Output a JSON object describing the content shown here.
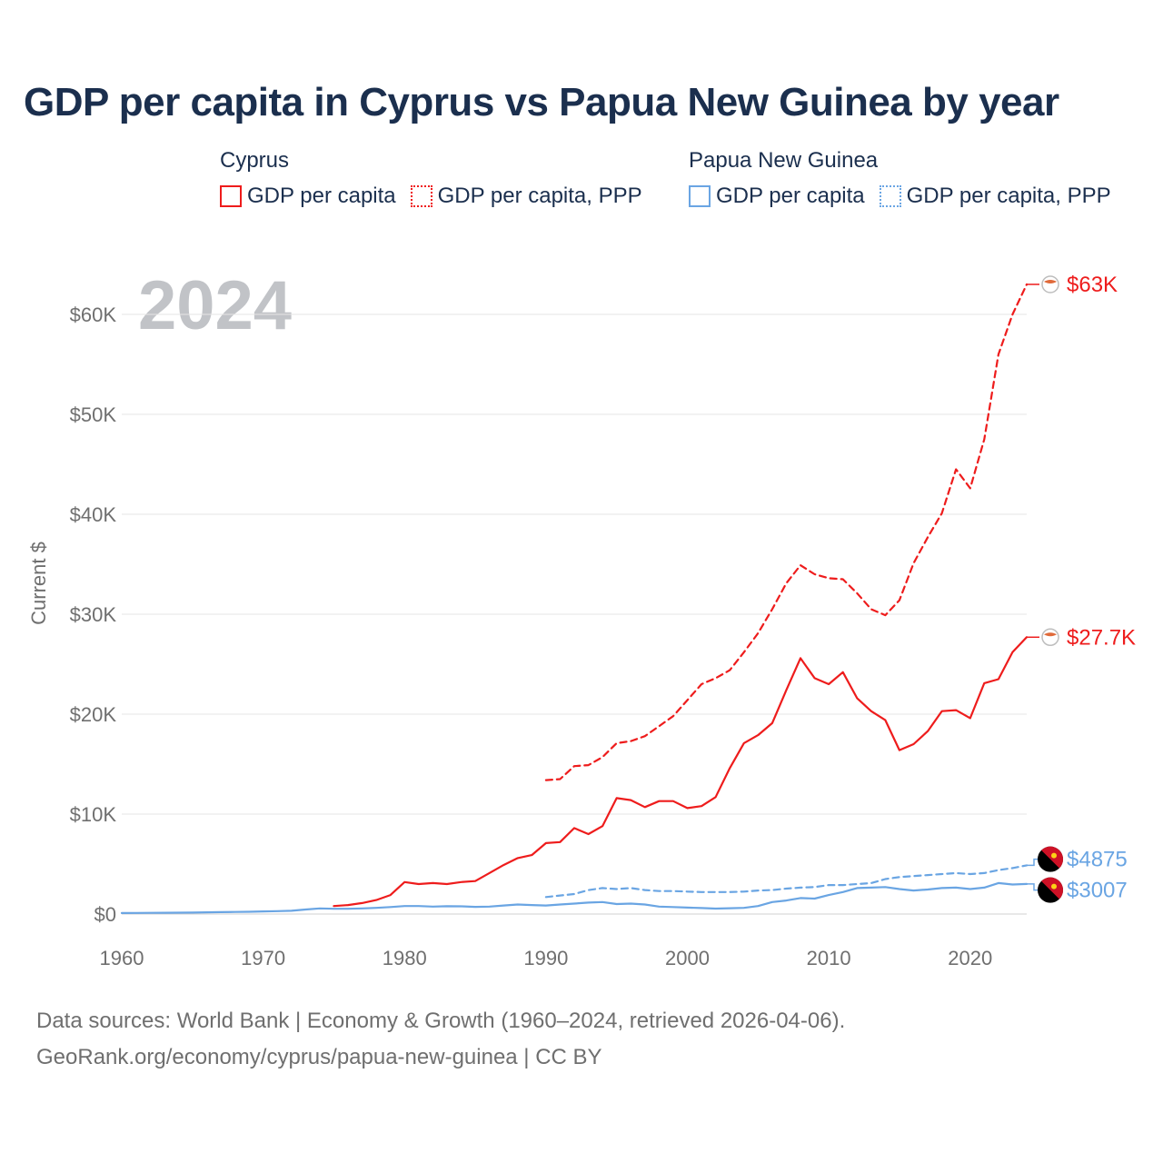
{
  "chart_data": {
    "type": "line",
    "title": "GDP per capita in Cyprus vs Papua New Guinea by year",
    "ylabel": "Current $",
    "xlabel": "",
    "year_label": "2024",
    "xlim": [
      1960,
      2024
    ],
    "ylim": [
      0,
      65000
    ],
    "x_ticks": [
      1960,
      1970,
      1980,
      1990,
      2000,
      2010,
      2020
    ],
    "x_tick_labels": [
      "1960",
      "1970",
      "1980",
      "1990",
      "2000",
      "2010",
      "2020"
    ],
    "y_ticks": [
      0,
      10000,
      20000,
      30000,
      40000,
      50000,
      60000
    ],
    "y_tick_labels": [
      "$0",
      "$10K",
      "$20K",
      "$30K",
      "$40K",
      "$50K",
      "$60K"
    ],
    "grid": true,
    "legend_position": "top",
    "groups": [
      {
        "country": "Cyprus",
        "color": "#ee1c1c",
        "items": [
          {
            "label": "GDP per capita",
            "style": "solid"
          },
          {
            "label": "GDP per capita, PPP",
            "style": "dotted"
          }
        ]
      },
      {
        "country": "Papua New Guinea",
        "color": "#6aa5e3",
        "items": [
          {
            "label": "GDP per capita",
            "style": "solid"
          },
          {
            "label": "GDP per capita, PPP",
            "style": "dotted"
          }
        ]
      }
    ],
    "series": [
      {
        "name": "Cyprus GDP per capita, PPP",
        "color": "#ee1c1c",
        "dash": true,
        "end_label": "$63K",
        "x": [
          1990,
          1991,
          1992,
          1993,
          1994,
          1995,
          1996,
          1997,
          1998,
          1999,
          2000,
          2001,
          2002,
          2003,
          2004,
          2005,
          2006,
          2007,
          2008,
          2009,
          2010,
          2011,
          2012,
          2013,
          2014,
          2015,
          2016,
          2017,
          2018,
          2019,
          2020,
          2021,
          2022,
          2023,
          2024
        ],
        "values": [
          13400,
          13500,
          14800,
          14900,
          15700,
          17100,
          17300,
          17800,
          18800,
          19800,
          21400,
          23000,
          23600,
          24400,
          26200,
          28100,
          30500,
          33100,
          34900,
          34000,
          33600,
          33500,
          32100,
          30500,
          29900,
          31400,
          35100,
          37700,
          40100,
          44500,
          42600,
          47500,
          56000,
          60000,
          63000
        ]
      },
      {
        "name": "Cyprus GDP per capita",
        "color": "#ee1c1c",
        "dash": false,
        "end_label": "$27.7K",
        "x": [
          1975,
          1976,
          1977,
          1978,
          1979,
          1980,
          1981,
          1982,
          1983,
          1984,
          1985,
          1986,
          1987,
          1988,
          1989,
          1990,
          1991,
          1992,
          1993,
          1994,
          1995,
          1996,
          1997,
          1998,
          1999,
          2000,
          2001,
          2002,
          2003,
          2004,
          2005,
          2006,
          2007,
          2008,
          2009,
          2010,
          2011,
          2012,
          2013,
          2014,
          2015,
          2016,
          2017,
          2018,
          2019,
          2020,
          2021,
          2022,
          2023,
          2024
        ],
        "values": [
          800,
          900,
          1100,
          1400,
          1900,
          3200,
          3000,
          3100,
          3000,
          3200,
          3300,
          4100,
          4900,
          5600,
          5900,
          7100,
          7200,
          8600,
          8000,
          8800,
          11600,
          11400,
          10700,
          11300,
          11300,
          10600,
          10800,
          11700,
          14600,
          17100,
          17900,
          19100,
          22400,
          25600,
          23600,
          23000,
          24200,
          21600,
          20300,
          19400,
          16400,
          17000,
          18300,
          20300,
          20400,
          19600,
          23100,
          23500,
          26200,
          27700
        ]
      },
      {
        "name": "Papua New Guinea GDP per capita, PPP",
        "color": "#6aa5e3",
        "dash": true,
        "end_label": "$4875",
        "x": [
          1990,
          1991,
          1992,
          1993,
          1994,
          1995,
          1996,
          1997,
          1998,
          1999,
          2000,
          2001,
          2002,
          2003,
          2004,
          2005,
          2006,
          2007,
          2008,
          2009,
          2010,
          2011,
          2012,
          2013,
          2014,
          2015,
          2016,
          2017,
          2018,
          2019,
          2020,
          2021,
          2022,
          2023,
          2024
        ],
        "values": [
          1700,
          1850,
          2000,
          2400,
          2600,
          2500,
          2600,
          2400,
          2300,
          2300,
          2250,
          2200,
          2200,
          2200,
          2250,
          2350,
          2400,
          2550,
          2650,
          2700,
          2900,
          2900,
          3000,
          3100,
          3500,
          3700,
          3800,
          3900,
          4000,
          4100,
          4000,
          4100,
          4400,
          4600,
          4875
        ]
      },
      {
        "name": "Papua New Guinea GDP per capita",
        "color": "#6aa5e3",
        "dash": false,
        "end_label": "$3007",
        "x": [
          1960,
          1961,
          1962,
          1963,
          1964,
          1965,
          1966,
          1967,
          1968,
          1969,
          1970,
          1971,
          1972,
          1973,
          1974,
          1975,
          1976,
          1977,
          1978,
          1979,
          1980,
          1981,
          1982,
          1983,
          1984,
          1985,
          1986,
          1987,
          1988,
          1989,
          1990,
          1991,
          1992,
          1993,
          1994,
          1995,
          1996,
          1997,
          1998,
          1999,
          2000,
          2001,
          2002,
          2003,
          2004,
          2005,
          2006,
          2007,
          2008,
          2009,
          2010,
          2011,
          2012,
          2013,
          2014,
          2015,
          2016,
          2017,
          2018,
          2019,
          2020,
          2021,
          2022,
          2023,
          2024
        ],
        "values": [
          100,
          110,
          120,
          130,
          140,
          150,
          170,
          190,
          210,
          230,
          260,
          290,
          330,
          450,
          560,
          530,
          530,
          560,
          620,
          700,
          800,
          800,
          750,
          780,
          770,
          720,
          750,
          850,
          950,
          900,
          850,
          950,
          1050,
          1150,
          1200,
          1000,
          1050,
          950,
          750,
          700,
          650,
          600,
          550,
          580,
          620,
          800,
          1200,
          1350,
          1600,
          1550,
          1900,
          2200,
          2600,
          2650,
          2700,
          2500,
          2350,
          2450,
          2600,
          2650,
          2500,
          2650,
          3100,
          2950,
          3007
        ]
      }
    ],
    "source_line_1": "Data sources: World Bank | Economy & Growth (1960–2024, retrieved 2026-04-06).",
    "source_line_2": "GeoRank.org/economy/cyprus/papua-new-guinea | CC BY"
  }
}
